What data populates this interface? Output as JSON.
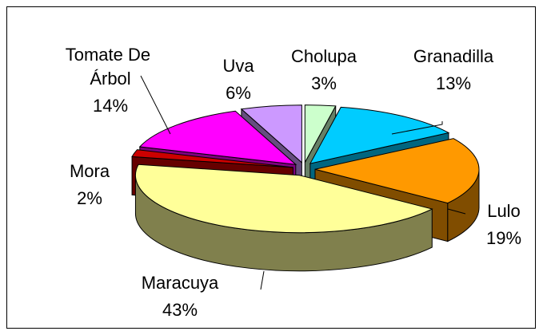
{
  "chart_data": {
    "type": "pie3d",
    "categories": [
      "Cholupa",
      "Granadilla",
      "Lulo",
      "Maracuya",
      "Mora",
      "Tomate De Árbol",
      "Uva"
    ],
    "values": [
      3,
      13,
      19,
      43,
      2,
      14,
      6
    ],
    "value_labels": [
      "3%",
      "13%",
      "19%",
      "43%",
      "2%",
      "14%",
      "6%"
    ],
    "colors": [
      "#ccffcc",
      "#00ccff",
      "#ff9900",
      "#ffff99",
      "#cc0000",
      "#ff00ff",
      "#cc99ff"
    ]
  }
}
